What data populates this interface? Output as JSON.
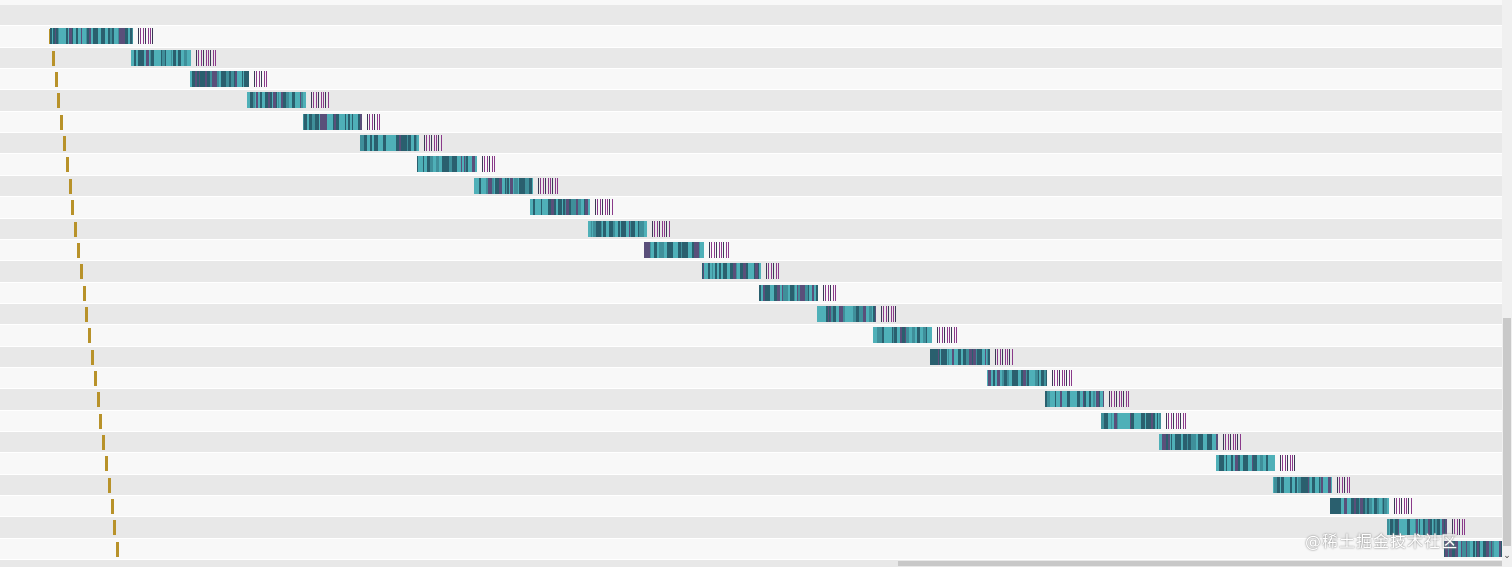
{
  "waterfall": {
    "request_count": 25,
    "rows": [
      {
        "queue": 0,
        "start": 50,
        "width": 83
      },
      {
        "queue": 1,
        "start": 131,
        "width": 60
      },
      {
        "queue": 2,
        "start": 190,
        "width": 59
      },
      {
        "queue": 3,
        "start": 247,
        "width": 59
      },
      {
        "queue": 4,
        "start": 303,
        "width": 59
      },
      {
        "queue": 5,
        "start": 360,
        "width": 59
      },
      {
        "queue": 6,
        "start": 417,
        "width": 60
      },
      {
        "queue": 7,
        "start": 474,
        "width": 59
      },
      {
        "queue": 8,
        "start": 530,
        "width": 60
      },
      {
        "queue": 9,
        "start": 588,
        "width": 59
      },
      {
        "queue": 10,
        "start": 644,
        "width": 60
      },
      {
        "queue": 11,
        "start": 702,
        "width": 59
      },
      {
        "queue": 12,
        "start": 759,
        "width": 59
      },
      {
        "queue": 13,
        "start": 817,
        "width": 59
      },
      {
        "queue": 14,
        "start": 873,
        "width": 59
      },
      {
        "queue": 15,
        "start": 930,
        "width": 60
      },
      {
        "queue": 16,
        "start": 987,
        "width": 60
      },
      {
        "queue": 17,
        "start": 1045,
        "width": 59
      },
      {
        "queue": 18,
        "start": 1101,
        "width": 60
      },
      {
        "queue": 19,
        "start": 1159,
        "width": 59
      },
      {
        "queue": 20,
        "start": 1216,
        "width": 59
      },
      {
        "queue": 21,
        "start": 1273,
        "width": 59
      },
      {
        "queue": 22,
        "start": 1330,
        "width": 59
      },
      {
        "queue": 23,
        "start": 1387,
        "width": 60
      },
      {
        "queue": 24,
        "start": 1444,
        "width": 58
      }
    ],
    "colors": {
      "queue": "#b8922a",
      "download_light": "#4fb0b8",
      "download_dark": "#2a5f6e",
      "download_mid": "#3f8f9a",
      "tick_purple": "#8a3a8a",
      "tick_dark": "#3a3a55"
    }
  },
  "scrollbar": {
    "arrow_icon": "chevron-down-icon",
    "arrow_glyph": "⌄"
  },
  "watermark": {
    "text": "@稀土掘金技术社区"
  }
}
